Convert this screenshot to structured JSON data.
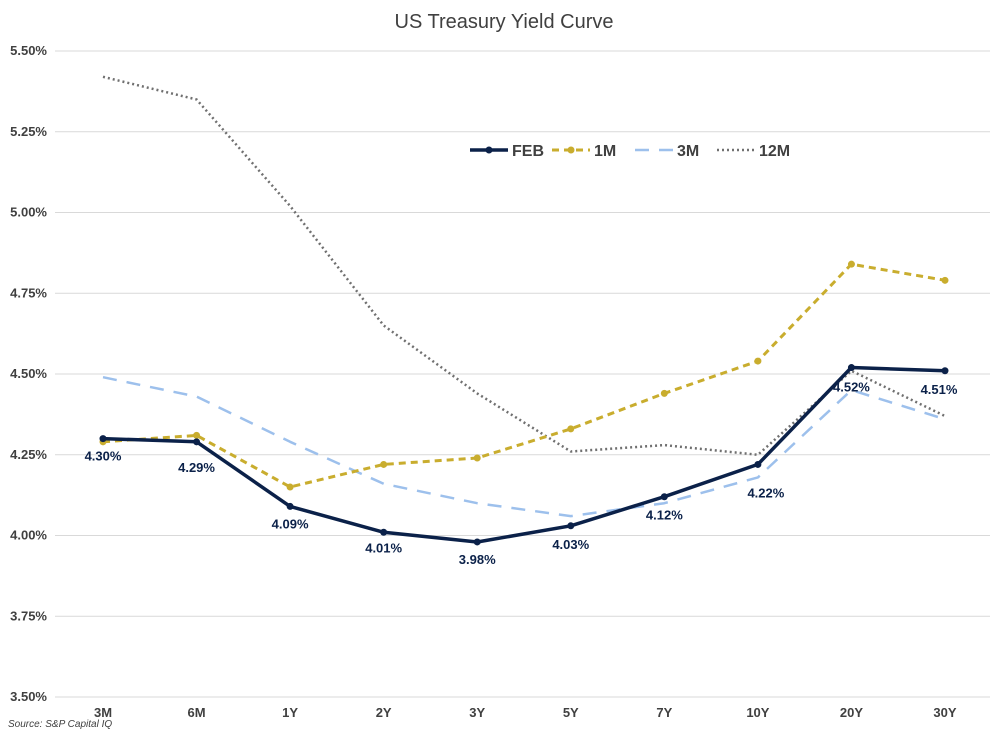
{
  "chart_data": {
    "type": "line",
    "title": "US Treasury Yield Curve",
    "xlabel": "",
    "ylabel": "",
    "categories": [
      "3M",
      "6M",
      "1Y",
      "2Y",
      "3Y",
      "5Y",
      "7Y",
      "10Y",
      "20Y",
      "30Y"
    ],
    "ylim": [
      3.5,
      5.5
    ],
    "yticks": [
      3.5,
      3.75,
      4.0,
      4.25,
      4.5,
      4.75,
      5.0,
      5.25,
      5.5
    ],
    "ytick_labels": [
      "3.50%",
      "3.75%",
      "4.00%",
      "4.25%",
      "4.50%",
      "4.75%",
      "5.00%",
      "5.25%",
      "5.50%"
    ],
    "grid": true,
    "legend_position": "top-right",
    "series": [
      {
        "name": "FEB",
        "style": "solid",
        "color": "#0b2149",
        "markers": true,
        "values": [
          4.3,
          4.29,
          4.09,
          4.01,
          3.98,
          4.03,
          4.12,
          4.22,
          4.52,
          4.51
        ],
        "data_labels": [
          "4.30%",
          "4.29%",
          "4.09%",
          "4.01%",
          "3.98%",
          "4.03%",
          "4.12%",
          "4.22%",
          "4.52%",
          "4.51%"
        ]
      },
      {
        "name": "1M",
        "style": "dashed",
        "color": "#c9ad2e",
        "markers": true,
        "values": [
          4.29,
          4.31,
          4.15,
          4.22,
          4.24,
          4.33,
          4.44,
          4.54,
          4.84,
          4.79
        ]
      },
      {
        "name": "3M",
        "style": "long-dash",
        "color": "#9dc0ec",
        "markers": false,
        "values": [
          4.49,
          4.43,
          4.29,
          4.16,
          4.1,
          4.06,
          4.1,
          4.18,
          4.45,
          4.36
        ]
      },
      {
        "name": "12M",
        "style": "dotted",
        "color": "#707070",
        "markers": false,
        "values": [
          5.42,
          5.35,
          5.02,
          4.65,
          4.44,
          4.26,
          4.28,
          4.25,
          4.51,
          4.37
        ]
      }
    ],
    "source": "Source: S&P Capital IQ"
  }
}
